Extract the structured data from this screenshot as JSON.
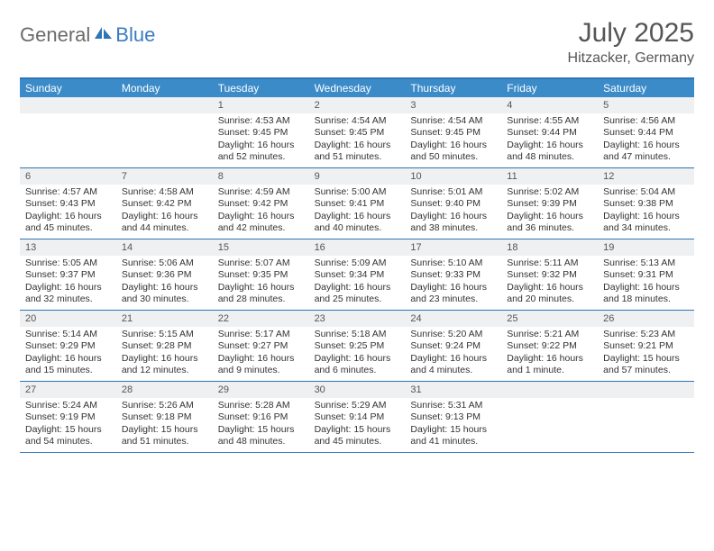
{
  "logo": {
    "part1": "General",
    "part2": "Blue"
  },
  "title": "July 2025",
  "location": "Hitzacker, Germany",
  "colors": {
    "header_bg": "#3b8bc9",
    "border": "#2e75b6",
    "daynum_bg": "#eef0f1",
    "logo_gray": "#6b6b6b",
    "logo_blue": "#3b7bbf"
  },
  "weekdays": [
    "Sunday",
    "Monday",
    "Tuesday",
    "Wednesday",
    "Thursday",
    "Friday",
    "Saturday"
  ],
  "weeks": [
    [
      {
        "n": "",
        "sr": "",
        "ss": "",
        "dl": ""
      },
      {
        "n": "",
        "sr": "",
        "ss": "",
        "dl": ""
      },
      {
        "n": "1",
        "sr": "Sunrise: 4:53 AM",
        "ss": "Sunset: 9:45 PM",
        "dl": "Daylight: 16 hours and 52 minutes."
      },
      {
        "n": "2",
        "sr": "Sunrise: 4:54 AM",
        "ss": "Sunset: 9:45 PM",
        "dl": "Daylight: 16 hours and 51 minutes."
      },
      {
        "n": "3",
        "sr": "Sunrise: 4:54 AM",
        "ss": "Sunset: 9:45 PM",
        "dl": "Daylight: 16 hours and 50 minutes."
      },
      {
        "n": "4",
        "sr": "Sunrise: 4:55 AM",
        "ss": "Sunset: 9:44 PM",
        "dl": "Daylight: 16 hours and 48 minutes."
      },
      {
        "n": "5",
        "sr": "Sunrise: 4:56 AM",
        "ss": "Sunset: 9:44 PM",
        "dl": "Daylight: 16 hours and 47 minutes."
      }
    ],
    [
      {
        "n": "6",
        "sr": "Sunrise: 4:57 AM",
        "ss": "Sunset: 9:43 PM",
        "dl": "Daylight: 16 hours and 45 minutes."
      },
      {
        "n": "7",
        "sr": "Sunrise: 4:58 AM",
        "ss": "Sunset: 9:42 PM",
        "dl": "Daylight: 16 hours and 44 minutes."
      },
      {
        "n": "8",
        "sr": "Sunrise: 4:59 AM",
        "ss": "Sunset: 9:42 PM",
        "dl": "Daylight: 16 hours and 42 minutes."
      },
      {
        "n": "9",
        "sr": "Sunrise: 5:00 AM",
        "ss": "Sunset: 9:41 PM",
        "dl": "Daylight: 16 hours and 40 minutes."
      },
      {
        "n": "10",
        "sr": "Sunrise: 5:01 AM",
        "ss": "Sunset: 9:40 PM",
        "dl": "Daylight: 16 hours and 38 minutes."
      },
      {
        "n": "11",
        "sr": "Sunrise: 5:02 AM",
        "ss": "Sunset: 9:39 PM",
        "dl": "Daylight: 16 hours and 36 minutes."
      },
      {
        "n": "12",
        "sr": "Sunrise: 5:04 AM",
        "ss": "Sunset: 9:38 PM",
        "dl": "Daylight: 16 hours and 34 minutes."
      }
    ],
    [
      {
        "n": "13",
        "sr": "Sunrise: 5:05 AM",
        "ss": "Sunset: 9:37 PM",
        "dl": "Daylight: 16 hours and 32 minutes."
      },
      {
        "n": "14",
        "sr": "Sunrise: 5:06 AM",
        "ss": "Sunset: 9:36 PM",
        "dl": "Daylight: 16 hours and 30 minutes."
      },
      {
        "n": "15",
        "sr": "Sunrise: 5:07 AM",
        "ss": "Sunset: 9:35 PM",
        "dl": "Daylight: 16 hours and 28 minutes."
      },
      {
        "n": "16",
        "sr": "Sunrise: 5:09 AM",
        "ss": "Sunset: 9:34 PM",
        "dl": "Daylight: 16 hours and 25 minutes."
      },
      {
        "n": "17",
        "sr": "Sunrise: 5:10 AM",
        "ss": "Sunset: 9:33 PM",
        "dl": "Daylight: 16 hours and 23 minutes."
      },
      {
        "n": "18",
        "sr": "Sunrise: 5:11 AM",
        "ss": "Sunset: 9:32 PM",
        "dl": "Daylight: 16 hours and 20 minutes."
      },
      {
        "n": "19",
        "sr": "Sunrise: 5:13 AM",
        "ss": "Sunset: 9:31 PM",
        "dl": "Daylight: 16 hours and 18 minutes."
      }
    ],
    [
      {
        "n": "20",
        "sr": "Sunrise: 5:14 AM",
        "ss": "Sunset: 9:29 PM",
        "dl": "Daylight: 16 hours and 15 minutes."
      },
      {
        "n": "21",
        "sr": "Sunrise: 5:15 AM",
        "ss": "Sunset: 9:28 PM",
        "dl": "Daylight: 16 hours and 12 minutes."
      },
      {
        "n": "22",
        "sr": "Sunrise: 5:17 AM",
        "ss": "Sunset: 9:27 PM",
        "dl": "Daylight: 16 hours and 9 minutes."
      },
      {
        "n": "23",
        "sr": "Sunrise: 5:18 AM",
        "ss": "Sunset: 9:25 PM",
        "dl": "Daylight: 16 hours and 6 minutes."
      },
      {
        "n": "24",
        "sr": "Sunrise: 5:20 AM",
        "ss": "Sunset: 9:24 PM",
        "dl": "Daylight: 16 hours and 4 minutes."
      },
      {
        "n": "25",
        "sr": "Sunrise: 5:21 AM",
        "ss": "Sunset: 9:22 PM",
        "dl": "Daylight: 16 hours and 1 minute."
      },
      {
        "n": "26",
        "sr": "Sunrise: 5:23 AM",
        "ss": "Sunset: 9:21 PM",
        "dl": "Daylight: 15 hours and 57 minutes."
      }
    ],
    [
      {
        "n": "27",
        "sr": "Sunrise: 5:24 AM",
        "ss": "Sunset: 9:19 PM",
        "dl": "Daylight: 15 hours and 54 minutes."
      },
      {
        "n": "28",
        "sr": "Sunrise: 5:26 AM",
        "ss": "Sunset: 9:18 PM",
        "dl": "Daylight: 15 hours and 51 minutes."
      },
      {
        "n": "29",
        "sr": "Sunrise: 5:28 AM",
        "ss": "Sunset: 9:16 PM",
        "dl": "Daylight: 15 hours and 48 minutes."
      },
      {
        "n": "30",
        "sr": "Sunrise: 5:29 AM",
        "ss": "Sunset: 9:14 PM",
        "dl": "Daylight: 15 hours and 45 minutes."
      },
      {
        "n": "31",
        "sr": "Sunrise: 5:31 AM",
        "ss": "Sunset: 9:13 PM",
        "dl": "Daylight: 15 hours and 41 minutes."
      },
      {
        "n": "",
        "sr": "",
        "ss": "",
        "dl": ""
      },
      {
        "n": "",
        "sr": "",
        "ss": "",
        "dl": ""
      }
    ]
  ]
}
